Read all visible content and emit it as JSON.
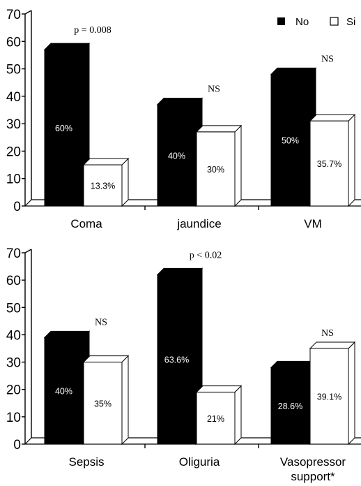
{
  "colors": {
    "no": "#000000",
    "si": "#ffffff",
    "outline": "#000000"
  },
  "legend": {
    "no_label": "No",
    "si_label": "Si"
  },
  "chart_data": [
    {
      "type": "bar",
      "categories": [
        "Coma",
        "jaundice",
        "VM"
      ],
      "series": [
        {
          "name": "No",
          "values": [
            57,
            37,
            48
          ],
          "labels": [
            "60%",
            "40%",
            "50%"
          ]
        },
        {
          "name": "Si",
          "values": [
            15,
            27,
            31
          ],
          "labels": [
            "13.3%",
            "30%",
            "35.7%"
          ]
        }
      ],
      "annotations": [
        "p = 0.008",
        "NS",
        "NS"
      ],
      "yticks": [
        "0",
        "10",
        "20",
        "30",
        "40",
        "50",
        "60",
        "70"
      ],
      "ylim": [
        0,
        70
      ],
      "legend_position": "top-right"
    },
    {
      "type": "bar",
      "categories": [
        "Sepsis",
        "Oliguria",
        "Vasopressor support*"
      ],
      "series": [
        {
          "name": "No",
          "values": [
            39,
            62,
            28
          ],
          "labels": [
            "40%",
            "63.6%",
            "28.6%"
          ]
        },
        {
          "name": "Si",
          "values": [
            30,
            19,
            35
          ],
          "labels": [
            "35%",
            "21%",
            "39.1%"
          ]
        }
      ],
      "annotations": [
        "NS",
        "p < 0.02",
        "NS"
      ],
      "yticks": [
        "0",
        "10",
        "20",
        "30",
        "40",
        "50",
        "60",
        "70"
      ],
      "ylim": [
        0,
        70
      ]
    }
  ]
}
